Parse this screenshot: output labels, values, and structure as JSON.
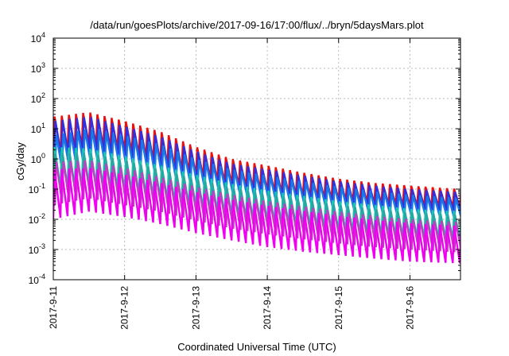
{
  "chart_data": {
    "type": "line",
    "title": "/data/run/goesPlots/archive/2017-09-16/17:00/flux/../bryn/5daysMars.plot",
    "xlabel": "Coordinated Universal Time (UTC)",
    "ylabel": "cGy/day",
    "yscale": "log",
    "ylim": [
      0.0001,
      10000
    ],
    "xlim": [
      "2017-09-11",
      "2017-09-16 17:00"
    ],
    "x_ticks": [
      "2017-9-11",
      "2017-9-12",
      "2017-9-13",
      "2017-9-14",
      "2017-9-15",
      "2017-9-16"
    ],
    "y_ticks": [
      {
        "base": "10",
        "exp": "-4",
        "value": 0.0001
      },
      {
        "base": "10",
        "exp": "-3",
        "value": 0.001
      },
      {
        "base": "10",
        "exp": "-2",
        "value": 0.01
      },
      {
        "base": "10",
        "exp": "-1",
        "value": 0.1
      },
      {
        "base": "10",
        "exp": "0",
        "value": 1
      },
      {
        "base": "10",
        "exp": "1",
        "value": 10
      },
      {
        "base": "10",
        "exp": "2",
        "value": 100
      },
      {
        "base": "10",
        "exp": "3",
        "value": 1000
      },
      {
        "base": "10",
        "exp": "4",
        "value": 10000
      }
    ],
    "grid": true,
    "oscillation_period_days": 0.1,
    "series": [
      {
        "color": "#e81010",
        "days": [
          0,
          0.5,
          1,
          1.5,
          2,
          2.5,
          3,
          3.5,
          4,
          4.5,
          5,
          5.7
        ],
        "peak": [
          25,
          35,
          18,
          8,
          2.5,
          1.0,
          0.6,
          0.35,
          0.22,
          0.16,
          0.13,
          0.1
        ],
        "trough": [
          1.5,
          3,
          2,
          0.8,
          0.3,
          0.15,
          0.09,
          0.06,
          0.045,
          0.035,
          0.028,
          0.025
        ]
      },
      {
        "color": "#3030e0",
        "days": [
          0,
          0.5,
          1,
          1.5,
          2,
          2.5,
          3,
          3.5,
          4,
          4.5,
          5,
          5.7
        ],
        "peak": [
          18,
          25,
          12,
          5.5,
          1.8,
          0.7,
          0.45,
          0.28,
          0.18,
          0.13,
          0.1,
          0.08
        ],
        "trough": [
          1.0,
          2,
          1.3,
          0.55,
          0.2,
          0.1,
          0.065,
          0.045,
          0.033,
          0.026,
          0.021,
          0.019
        ]
      },
      {
        "color": "#1a78e6",
        "days": [
          0,
          0.5,
          1,
          1.5,
          2,
          2.5,
          3,
          3.5,
          4,
          4.5,
          5,
          5.7
        ],
        "peak": [
          6,
          10,
          6,
          3,
          1.0,
          0.45,
          0.28,
          0.18,
          0.12,
          0.085,
          0.065,
          0.05
        ],
        "trough": [
          0.35,
          0.8,
          0.6,
          0.3,
          0.12,
          0.06,
          0.04,
          0.028,
          0.02,
          0.015,
          0.012,
          0.01
        ]
      },
      {
        "color": "#18c8a8",
        "days": [
          0,
          0.5,
          1,
          1.5,
          2,
          2.5,
          3,
          3.5,
          4,
          4.5,
          5,
          5.7
        ],
        "peak": [
          2.5,
          2.2,
          1.2,
          0.6,
          0.3,
          0.15,
          0.09,
          0.06,
          0.04,
          0.03,
          0.022,
          0.018
        ],
        "trough": [
          0.1,
          0.13,
          0.09,
          0.05,
          0.025,
          0.013,
          0.008,
          0.006,
          0.004,
          0.003,
          0.0025,
          0.002
        ]
      },
      {
        "color": "#2aa4a4",
        "days": [
          0,
          0.5,
          1,
          1.5,
          2,
          2.5,
          3,
          3.5,
          4,
          4.5,
          5,
          5.7
        ],
        "peak": [
          1.5,
          1.6,
          0.9,
          0.45,
          0.22,
          0.11,
          0.07,
          0.045,
          0.03,
          0.022,
          0.017,
          0.014
        ],
        "trough": [
          0.06,
          0.09,
          0.06,
          0.035,
          0.018,
          0.009,
          0.006,
          0.0045,
          0.003,
          0.0023,
          0.0018,
          0.0015
        ]
      },
      {
        "color": "#c040c0",
        "days": [
          0,
          0.5,
          1,
          1.5,
          2,
          2.5,
          3,
          3.5,
          4,
          4.5,
          5,
          5.7
        ],
        "peak": [
          0.8,
          0.9,
          0.5,
          0.25,
          0.12,
          0.065,
          0.04,
          0.027,
          0.018,
          0.013,
          0.01,
          0.008
        ],
        "trough": [
          0.03,
          0.05,
          0.03,
          0.018,
          0.009,
          0.005,
          0.0032,
          0.0022,
          0.0016,
          0.0012,
          0.001,
          0.0008
        ]
      },
      {
        "color": "#f000f0",
        "days": [
          0,
          0.5,
          1,
          1.5,
          2,
          2.5,
          3,
          3.5,
          4,
          4.5,
          5,
          5.7
        ],
        "peak": [
          0.45,
          0.5,
          0.3,
          0.16,
          0.08,
          0.045,
          0.028,
          0.019,
          0.013,
          0.0095,
          0.0075,
          0.006
        ],
        "trough": [
          0.01,
          0.018,
          0.012,
          0.007,
          0.0035,
          0.002,
          0.0012,
          0.00085,
          0.00065,
          0.0005,
          0.0004,
          0.00035
        ]
      }
    ]
  }
}
